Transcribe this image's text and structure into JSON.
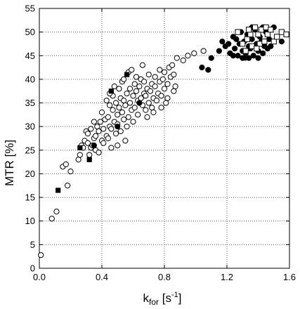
{
  "chart_data": {
    "type": "scatter",
    "title": "",
    "xlabel": {
      "main": "k",
      "sub": "for",
      "unit_open": " [s",
      "sup": "-1",
      "unit_close": "]"
    },
    "ylabel": "MTR [%]",
    "xlim": [
      0.0,
      1.6
    ],
    "ylim": [
      0,
      55
    ],
    "xticks": [
      0.0,
      0.4,
      0.8,
      1.2,
      1.6
    ],
    "xtick_labels": [
      "0.0",
      "0.4",
      "0.8",
      "1.2",
      "1.6"
    ],
    "yticks": [
      0,
      5,
      10,
      15,
      20,
      25,
      30,
      35,
      40,
      45,
      50,
      55
    ],
    "ytick_labels": [
      "0",
      "5",
      "10",
      "15",
      "20",
      "25",
      "30",
      "35",
      "40",
      "45",
      "50",
      "55"
    ],
    "grid": true,
    "grid_style": "dotted",
    "series": [
      {
        "marker": "open-circle",
        "color": "#000000",
        "points": [
          [
            0.01,
            2.8
          ],
          [
            0.08,
            10.5
          ],
          [
            0.11,
            12.0
          ],
          [
            0.15,
            21.5
          ],
          [
            0.17,
            22.0
          ],
          [
            0.18,
            17.5
          ],
          [
            0.2,
            20.5
          ],
          [
            0.25,
            23.0
          ],
          [
            0.26,
            24.0
          ],
          [
            0.27,
            26.0
          ],
          [
            0.28,
            25.5
          ],
          [
            0.29,
            27.0
          ],
          [
            0.3,
            29.0
          ],
          [
            0.31,
            28.5
          ],
          [
            0.31,
            26.5
          ],
          [
            0.32,
            24.0
          ],
          [
            0.33,
            25.5
          ],
          [
            0.34,
            26.0
          ],
          [
            0.35,
            27.5
          ],
          [
            0.36,
            28.0
          ],
          [
            0.36,
            25.0
          ],
          [
            0.37,
            30.0
          ],
          [
            0.38,
            24.5
          ],
          [
            0.38,
            29.0
          ],
          [
            0.39,
            31.0
          ],
          [
            0.4,
            27.0
          ],
          [
            0.4,
            33.0
          ],
          [
            0.41,
            29.5
          ],
          [
            0.42,
            31.5
          ],
          [
            0.43,
            28.0
          ],
          [
            0.43,
            35.5
          ],
          [
            0.44,
            32.0
          ],
          [
            0.45,
            30.0
          ],
          [
            0.45,
            34.5
          ],
          [
            0.46,
            29.5
          ],
          [
            0.47,
            33.5
          ],
          [
            0.47,
            36.5
          ],
          [
            0.48,
            31.0
          ],
          [
            0.49,
            28.5
          ],
          [
            0.49,
            35.0
          ],
          [
            0.5,
            32.5
          ],
          [
            0.5,
            30.5
          ],
          [
            0.51,
            34.0
          ],
          [
            0.52,
            29.0
          ],
          [
            0.52,
            36.0
          ],
          [
            0.53,
            33.0
          ],
          [
            0.54,
            31.5
          ],
          [
            0.54,
            35.5
          ],
          [
            0.55,
            27.0
          ],
          [
            0.55,
            34.5
          ],
          [
            0.56,
            30.0
          ],
          [
            0.56,
            37.0
          ],
          [
            0.57,
            32.0
          ],
          [
            0.58,
            35.0
          ],
          [
            0.58,
            38.0
          ],
          [
            0.59,
            33.5
          ],
          [
            0.6,
            36.5
          ],
          [
            0.6,
            31.0
          ],
          [
            0.61,
            34.0
          ],
          [
            0.61,
            39.0
          ],
          [
            0.62,
            37.5
          ],
          [
            0.63,
            35.5
          ],
          [
            0.63,
            32.5
          ],
          [
            0.64,
            38.5
          ],
          [
            0.65,
            36.0
          ],
          [
            0.65,
            40.0
          ],
          [
            0.66,
            34.5
          ],
          [
            0.67,
            37.0
          ],
          [
            0.67,
            39.5
          ],
          [
            0.68,
            33.5
          ],
          [
            0.68,
            36.5
          ],
          [
            0.69,
            38.0
          ],
          [
            0.7,
            35.0
          ],
          [
            0.7,
            41.0
          ],
          [
            0.71,
            37.5
          ],
          [
            0.72,
            39.0
          ],
          [
            0.72,
            34.0
          ],
          [
            0.73,
            36.0
          ],
          [
            0.74,
            40.5
          ],
          [
            0.74,
            38.5
          ],
          [
            0.75,
            35.5
          ],
          [
            0.76,
            37.0
          ],
          [
            0.77,
            39.5
          ],
          [
            0.77,
            42.0
          ],
          [
            0.78,
            36.5
          ],
          [
            0.79,
            40.0
          ],
          [
            0.8,
            38.0
          ],
          [
            0.8,
            41.5
          ],
          [
            0.81,
            35.0
          ],
          [
            0.82,
            39.0
          ],
          [
            0.83,
            42.5
          ],
          [
            0.84,
            40.5
          ],
          [
            0.85,
            43.0
          ],
          [
            0.86,
            41.0
          ],
          [
            0.87,
            38.5
          ],
          [
            0.88,
            44.5
          ],
          [
            0.92,
            44.0
          ],
          [
            0.95,
            45.0
          ],
          [
            0.99,
            45.5
          ],
          [
            1.05,
            46.0
          ],
          [
            0.45,
            37.0
          ],
          [
            0.48,
            38.5
          ],
          [
            0.53,
            39.5
          ],
          [
            0.57,
            41.5
          ],
          [
            0.62,
            40.5
          ],
          [
            0.35,
            31.0
          ],
          [
            0.33,
            29.5
          ],
          [
            0.41,
            26.5
          ],
          [
            0.44,
            27.5
          ],
          [
            0.46,
            25.5
          ],
          [
            0.5,
            26.0
          ],
          [
            0.51,
            38.0
          ],
          [
            0.54,
            40.0
          ],
          [
            0.59,
            42.0
          ],
          [
            0.66,
            43.0
          ],
          [
            0.69,
            32.0
          ],
          [
            0.73,
            33.0
          ],
          [
            0.78,
            34.0
          ],
          [
            0.82,
            36.0
          ],
          [
            0.86,
            37.5
          ]
        ]
      },
      {
        "marker": "filled-circle",
        "color": "#000000",
        "points": [
          [
            0.35,
            26.0
          ],
          [
            0.5,
            30.0
          ],
          [
            0.64,
            35.0
          ],
          [
            1.08,
            42.0
          ],
          [
            1.1,
            44.5
          ],
          [
            1.04,
            42.5
          ],
          [
            1.15,
            46.0
          ],
          [
            1.17,
            48.0
          ],
          [
            1.19,
            47.0
          ],
          [
            1.21,
            47.5
          ],
          [
            1.22,
            45.5
          ],
          [
            1.24,
            49.0
          ],
          [
            1.25,
            46.5
          ],
          [
            1.26,
            48.5
          ],
          [
            1.27,
            45.0
          ],
          [
            1.28,
            47.5
          ],
          [
            1.29,
            50.0
          ],
          [
            1.3,
            46.0
          ],
          [
            1.31,
            48.0
          ],
          [
            1.32,
            45.5
          ],
          [
            1.33,
            49.5
          ],
          [
            1.34,
            47.0
          ],
          [
            1.35,
            46.5
          ],
          [
            1.36,
            48.5
          ],
          [
            1.37,
            45.0
          ],
          [
            1.38,
            50.5
          ],
          [
            1.39,
            47.5
          ],
          [
            1.4,
            46.0
          ],
          [
            1.41,
            49.0
          ],
          [
            1.42,
            48.0
          ],
          [
            1.43,
            45.5
          ],
          [
            1.44,
            47.0
          ],
          [
            1.45,
            50.0
          ],
          [
            1.46,
            46.5
          ],
          [
            1.47,
            48.5
          ],
          [
            1.48,
            47.0
          ],
          [
            1.5,
            51.0
          ],
          [
            1.52,
            49.0
          ],
          [
            1.55,
            48.0
          ],
          [
            1.3,
            44.5
          ],
          [
            1.34,
            44.5
          ],
          [
            1.4,
            44.5
          ],
          [
            1.24,
            45.0
          ],
          [
            1.36,
            51.0
          ],
          [
            1.43,
            51.0
          ]
        ]
      },
      {
        "marker": "filled-square",
        "color": "#000000",
        "points": [
          [
            0.12,
            16.5
          ],
          [
            0.26,
            25.5
          ],
          [
            0.32,
            23.0
          ],
          [
            0.46,
            37.5
          ],
          [
            0.56,
            41.0
          ],
          [
            1.31,
            44.5
          ]
        ]
      },
      {
        "marker": "open-square",
        "color": "#000000",
        "points": [
          [
            1.27,
            50.0
          ],
          [
            1.3,
            47.5
          ],
          [
            1.32,
            46.0
          ],
          [
            1.33,
            48.5
          ],
          [
            1.35,
            49.5
          ],
          [
            1.36,
            47.0
          ],
          [
            1.38,
            51.0
          ],
          [
            1.4,
            49.5
          ],
          [
            1.41,
            47.5
          ],
          [
            1.42,
            50.5
          ],
          [
            1.44,
            48.0
          ],
          [
            1.45,
            51.0
          ],
          [
            1.46,
            49.5
          ],
          [
            1.48,
            50.5
          ],
          [
            1.5,
            48.0
          ],
          [
            1.52,
            49.0
          ],
          [
            1.55,
            50.0
          ],
          [
            1.58,
            49.5
          ],
          [
            1.34,
            50.5
          ],
          [
            1.39,
            46.5
          ]
        ]
      }
    ]
  }
}
